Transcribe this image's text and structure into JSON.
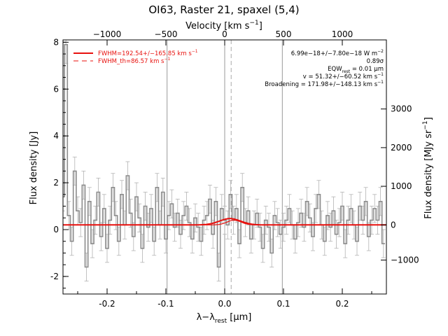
{
  "chart_data": {
    "type": "line",
    "title": "OI63, Raster 21, spaxel (5,4)",
    "xlabel": "λ−λ",
    "xlabel_sub": "rest",
    "xlabel_unit": " [μm]",
    "ylabel": "Flux density [Jy]",
    "top_label": "Velocity [km s",
    "top_label_sup": "−1",
    "top_label_end": "]",
    "right_label": "Flux density [MJy sr",
    "right_label_sup": "−1",
    "right_label_end": "]",
    "xlim": [
      -0.275,
      0.275
    ],
    "ylim": [
      -2.75,
      8.1
    ],
    "x_ticks": [
      "-0.2",
      "-0.1",
      "0.0",
      "0.1",
      "0.2"
    ],
    "x_tick_values": [
      -0.2,
      -0.1,
      0.0,
      0.1,
      0.2
    ],
    "y_ticks": [
      "-2",
      "0",
      "2",
      "4",
      "6",
      "8"
    ],
    "y_tick_values": [
      -2,
      0,
      2,
      4,
      6,
      8
    ],
    "top_ticks": [
      "−1000",
      "−500",
      "0",
      "500",
      "1000"
    ],
    "top_tick_values": [
      -0.2,
      -0.1,
      0.0,
      0.1,
      0.2
    ],
    "right_ticks": [
      "−1000",
      "0",
      "1000",
      "2000",
      "3000"
    ],
    "right_tick_values": [
      -1.3,
      0.2,
      1.85,
      3.5,
      5.15
    ],
    "vlines_solid": [
      -0.098,
      0.0,
      0.098
    ],
    "vline_dashed": 0.011,
    "legend": [
      {
        "label": "FWHM=192.54+/−165.85 km s",
        "sup": "−1",
        "style": "solid"
      },
      {
        "label": "FWHM_th=86.57 km s",
        "sup": "−1",
        "style": "dashed"
      }
    ],
    "annotations": [
      {
        "text": "6.99e−18+/−7.80e−18 W m",
        "sup": "−2"
      },
      {
        "text": "0.89σ"
      },
      {
        "text": "EQW",
        "sub": "rest",
        "end": " = 0.01 μm"
      },
      {
        "text": "v = 51.32+/−60.52 km s",
        "sup": "−1"
      },
      {
        "text": "Broadening = 171.98+/−148.13 km s",
        "sup": "−1"
      }
    ],
    "series": [
      {
        "name": "Spectrum",
        "color": "#8c8c8c",
        "x": [
          -0.275,
          -0.27,
          -0.265,
          -0.26,
          -0.255,
          -0.25,
          -0.245,
          -0.24,
          -0.235,
          -0.23,
          -0.225,
          -0.22,
          -0.215,
          -0.21,
          -0.205,
          -0.2,
          -0.195,
          -0.19,
          -0.185,
          -0.18,
          -0.175,
          -0.17,
          -0.165,
          -0.16,
          -0.155,
          -0.15,
          -0.145,
          -0.14,
          -0.135,
          -0.13,
          -0.125,
          -0.12,
          -0.115,
          -0.11,
          -0.105,
          -0.1,
          -0.095,
          -0.09,
          -0.085,
          -0.08,
          -0.075,
          -0.07,
          -0.065,
          -0.06,
          -0.055,
          -0.05,
          -0.045,
          -0.04,
          -0.035,
          -0.03,
          -0.025,
          -0.02,
          -0.015,
          -0.01,
          -0.005,
          0.0,
          0.005,
          0.01,
          0.015,
          0.02,
          0.025,
          0.03,
          0.035,
          0.04,
          0.045,
          0.05,
          0.055,
          0.06,
          0.065,
          0.07,
          0.075,
          0.08,
          0.085,
          0.09,
          0.095,
          0.1,
          0.105,
          0.11,
          0.115,
          0.12,
          0.125,
          0.13,
          0.135,
          0.14,
          0.145,
          0.15,
          0.155,
          0.16,
          0.165,
          0.17,
          0.175,
          0.18,
          0.185,
          0.19,
          0.195,
          0.2,
          0.205,
          0.21,
          0.215,
          0.22,
          0.225,
          0.23,
          0.235,
          0.24,
          0.245,
          0.25,
          0.255,
          0.26,
          0.265,
          0.27
        ],
        "y": [
          1.4,
          7.9,
          0.6,
          -0.5,
          2.5,
          0.8,
          0.3,
          1.9,
          -1.6,
          1.2,
          -0.6,
          0.4,
          1.6,
          -0.3,
          0.9,
          -0.8,
          0.4,
          1.8,
          0.6,
          -0.5,
          1.5,
          0.2,
          2.3,
          0.7,
          -0.3,
          1.4,
          0.5,
          -0.8,
          1.0,
          0.1,
          0.9,
          -0.5,
          1.8,
          0.2,
          1.6,
          -0.4,
          0.6,
          1.1,
          0.1,
          0.7,
          -0.2,
          0.6,
          1.0,
          0.3,
          -0.4,
          0.5,
          0.1,
          -0.5,
          0.4,
          0.6,
          1.3,
          -0.2,
          1.2,
          -1.6,
          0.9,
          0.4,
          0.2,
          1.5,
          0.4,
          0.9,
          -0.6,
          1.8,
          0.3,
          0.8,
          -0.4,
          0.2,
          0.7,
          0.1,
          -0.8,
          0.4,
          0.1,
          -1.0,
          0.6,
          0.3,
          -0.2,
          0.1,
          0.4,
          0.9,
          0.2,
          -0.4,
          0.3,
          0.7,
          0.1,
          1.2,
          0.5,
          -0.3,
          0.9,
          1.5,
          0.2,
          -0.5,
          0.6,
          0.1,
          0.8,
          -0.2,
          0.3,
          1.0,
          -0.6,
          0.4,
          0.9,
          0.2,
          -0.5,
          1.0,
          0.4,
          1.2,
          -0.3,
          0.4,
          0.9,
          0.4,
          1.2,
          -0.6
        ],
        "err": [
          0.6,
          0.8,
          0.6,
          0.6,
          0.6,
          0.6,
          0.6,
          0.6,
          0.6,
          0.6,
          0.6,
          0.6,
          0.6,
          0.6,
          0.6,
          0.6,
          0.6,
          0.6,
          0.6,
          0.6,
          0.6,
          0.6,
          0.6,
          0.6,
          0.6,
          0.6,
          0.6,
          0.6,
          0.6,
          0.6,
          0.6,
          0.6,
          0.6,
          0.6,
          0.6,
          0.6,
          0.6,
          0.6,
          0.6,
          0.6,
          0.6,
          0.6,
          0.6,
          0.6,
          0.6,
          0.6,
          0.6,
          0.6,
          0.6,
          0.6,
          0.6,
          0.6,
          0.6,
          0.6,
          0.6,
          0.6,
          0.6,
          0.6,
          0.6,
          0.6,
          0.6,
          0.6,
          0.6,
          0.6,
          0.6,
          0.6,
          0.6,
          0.6,
          0.6,
          0.6,
          0.6,
          0.6,
          0.6,
          0.6,
          0.6,
          0.6,
          0.6,
          0.6,
          0.6,
          0.6,
          0.6,
          0.6,
          0.6,
          0.6,
          0.6,
          0.6,
          0.6,
          0.6,
          0.6,
          0.6,
          0.6,
          0.6,
          0.6,
          0.6,
          0.6,
          0.6,
          0.6,
          0.6,
          0.6,
          0.6,
          0.6,
          0.6,
          0.6,
          0.6,
          0.6,
          0.6,
          0.6,
          0.6,
          0.6,
          0.6
        ]
      },
      {
        "name": "FWHM=192.54+/−165.85 km s−1",
        "color": "#e8110e",
        "baseline": 0.2,
        "amp": 0.27,
        "center": 0.009,
        "sigma": 0.018
      },
      {
        "name": "FWHM_th=86.57 km s−1",
        "color": "#e8110e",
        "baseline": 0.2,
        "amp": 0.2,
        "center": 0.016,
        "sigma": 0.012
      }
    ],
    "colors": {
      "spectrum": "#8c8c8c",
      "fit": "#e8110e",
      "vline": "#999999",
      "dashed": "#aaaaaa"
    }
  }
}
